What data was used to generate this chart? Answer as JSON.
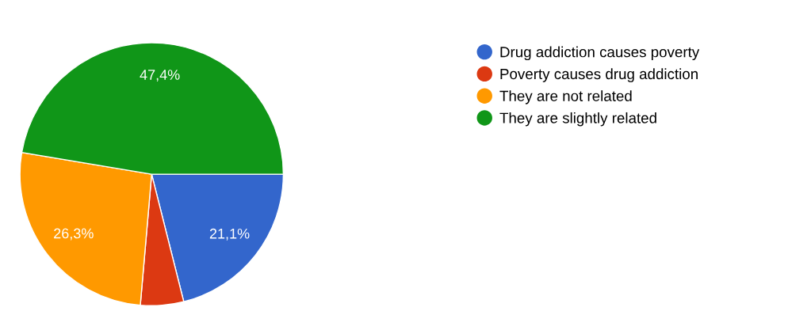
{
  "chart_data": {
    "type": "pie",
    "categories": [
      "Drug addiction causes poverty",
      "Poverty causes drug addiction",
      "They are not related",
      "They are slightly related"
    ],
    "values": [
      21.1,
      5.3,
      26.3,
      47.4
    ],
    "colors": [
      "#3366cc",
      "#dc3912",
      "#ff9900",
      "#109618"
    ],
    "value_labels": [
      "21,1%",
      null,
      "26,3%",
      "47,4%"
    ],
    "legend": "top right"
  }
}
